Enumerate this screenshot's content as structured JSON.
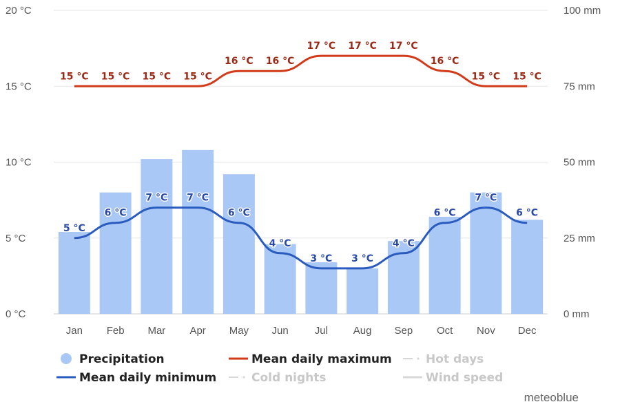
{
  "chart_data": {
    "type": "bar",
    "categories": [
      "Jan",
      "Feb",
      "Mar",
      "Apr",
      "May",
      "Jun",
      "Jul",
      "Aug",
      "Sep",
      "Oct",
      "Nov",
      "Dec"
    ],
    "series": [
      {
        "name": "Precipitation",
        "type": "bar",
        "axis": "right",
        "unit": "mm",
        "color": "#aac8f5",
        "values": [
          27,
          40,
          51,
          54,
          46,
          23,
          17,
          15,
          24,
          32,
          40,
          31
        ]
      },
      {
        "name": "Mean daily maximum",
        "type": "line",
        "axis": "left",
        "unit": "°C",
        "color": "#d23b1a",
        "values": [
          15,
          15,
          15,
          15,
          16,
          16,
          17,
          17,
          17,
          16,
          15,
          15
        ],
        "labels": [
          "15 °C",
          "15 °C",
          "15 °C",
          "15 °C",
          "16 °C",
          "16 °C",
          "17 °C",
          "17 °C",
          "17 °C",
          "16 °C",
          "15 °C",
          "15 °C"
        ]
      },
      {
        "name": "Mean daily minimum",
        "type": "line",
        "axis": "left",
        "unit": "°C",
        "color": "#2a5bbf",
        "values": [
          5,
          6,
          7,
          7,
          6,
          4,
          3,
          3,
          4,
          6,
          7,
          6
        ],
        "labels": [
          "5 °C",
          "6 °C",
          "7 °C",
          "7 °C",
          "6 °C",
          "4 °C",
          "3 °C",
          "3 °C",
          "4 °C",
          "6 °C",
          "7 °C",
          "6 °C"
        ]
      }
    ],
    "y_left": {
      "ylim": [
        0,
        20
      ],
      "ticks": [
        0,
        5,
        10,
        15,
        20
      ],
      "tick_labels": [
        "0 °C",
        "5 °C",
        "10 °C",
        "15 °C",
        "20 °C"
      ]
    },
    "y_right": {
      "ylim": [
        0,
        100
      ],
      "ticks": [
        0,
        25,
        50,
        75,
        100
      ],
      "tick_labels": [
        "0 mm",
        "25 mm",
        "50 mm",
        "75 mm",
        "100 mm"
      ]
    },
    "grid": true,
    "legend_position": "bottom",
    "legend": [
      {
        "label": "Precipitation",
        "symbol": "circle",
        "color": "#aac8f5",
        "active": true
      },
      {
        "label": "Mean daily maximum",
        "symbol": "line",
        "color": "#d23b1a",
        "active": true
      },
      {
        "label": "Hot days",
        "symbol": "dash",
        "color": "#d8d8d8",
        "active": false
      },
      {
        "label": "Mean daily minimum",
        "symbol": "line",
        "color": "#2a5bbf",
        "active": true
      },
      {
        "label": "Cold nights",
        "symbol": "dash",
        "color": "#d8d8d8",
        "active": false
      },
      {
        "label": "Wind speed",
        "symbol": "line",
        "color": "#d8d8d8",
        "active": false
      }
    ]
  },
  "credit": "meteoblue"
}
